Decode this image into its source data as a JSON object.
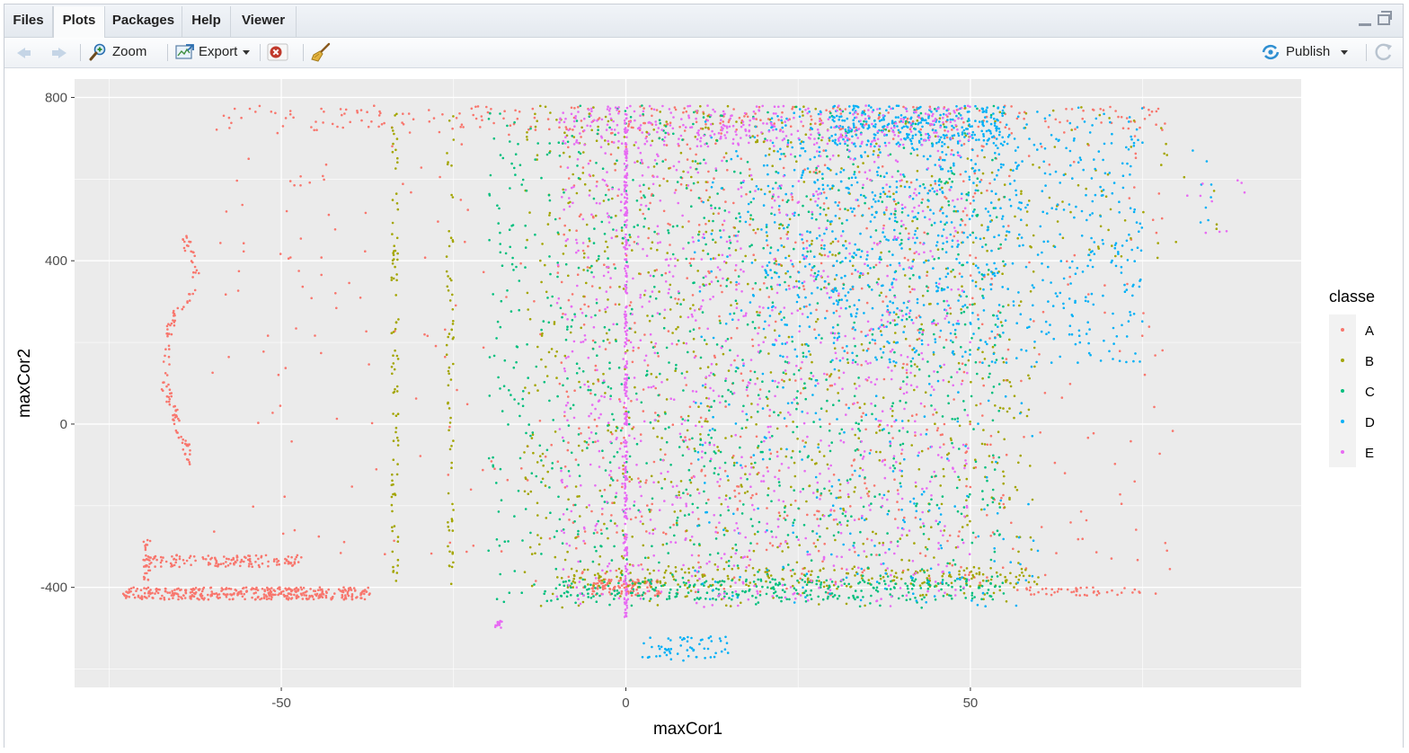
{
  "tabs": [
    {
      "label": "Files",
      "active": false
    },
    {
      "label": "Plots",
      "active": true
    },
    {
      "label": "Packages",
      "active": false
    },
    {
      "label": "Help",
      "active": false
    },
    {
      "label": "Viewer",
      "active": false
    }
  ],
  "toolbar": {
    "zoom_label": "Zoom",
    "export_label": "Export",
    "publish_label": "Publish",
    "icons": [
      "back-arrow-icon",
      "forward-arrow-icon",
      "zoom-icon",
      "export-icon",
      "remove-plot-icon",
      "broom-icon",
      "publish-icon",
      "refresh-icon"
    ]
  },
  "colors": {
    "A": "#F8766D",
    "B": "#A3A500",
    "C": "#00BF7D",
    "D": "#00B0F6",
    "E": "#E76BF3",
    "panel": "#EBEBEB",
    "grid": "#FFFFFF"
  },
  "chart_data": {
    "type": "scatter",
    "xlabel": "maxCor1",
    "ylabel": "maxCor2",
    "legend_title": "classe",
    "legend_position": "right",
    "grid": true,
    "xlim": [
      -80,
      98
    ],
    "ylim": [
      -645,
      845
    ],
    "x_ticks": [
      -50,
      0,
      50
    ],
    "x_tick_labels": [
      "-50",
      "0",
      "50"
    ],
    "y_ticks": [
      -400,
      0,
      400,
      800
    ],
    "y_tick_labels": [
      "-400",
      "0",
      "400",
      "800"
    ],
    "series": [
      {
        "name": "A",
        "color": "#F8766D",
        "clusters": [
          {
            "type": "band",
            "x": [
              -73,
              -37
            ],
            "y": [
              -430,
              -400
            ],
            "n": 380
          },
          {
            "type": "band",
            "x": [
              -70,
              -47
            ],
            "y": [
              -350,
              -320
            ],
            "n": 140
          },
          {
            "type": "band",
            "x": [
              -70,
              -69
            ],
            "y": [
              -390,
              -280
            ],
            "n": 25
          },
          {
            "type": "curve",
            "points": [
              [
                -64,
                460
              ],
              [
                -62,
                350
              ],
              [
                -66,
                250
              ],
              [
                -67,
                100
              ],
              [
                -65,
                0
              ],
              [
                -63,
                -100
              ]
            ],
            "n": 120
          },
          {
            "type": "band",
            "x": [
              -60,
              80
            ],
            "y": [
              720,
              780
            ],
            "n": 230
          },
          {
            "type": "uniform",
            "x": [
              -60,
              80
            ],
            "y": [
              -420,
              760
            ],
            "n": 380
          },
          {
            "type": "band",
            "x": [
              -5,
              5
            ],
            "y": [
              -420,
              -380
            ],
            "n": 110
          },
          {
            "type": "band",
            "x": [
              55,
              75
            ],
            "y": [
              -420,
              -400
            ],
            "n": 45
          },
          {
            "type": "uniform",
            "x": [
              -10,
              55
            ],
            "y": [
              -420,
              780
            ],
            "n": 500
          }
        ]
      },
      {
        "name": "B",
        "color": "#A3A500",
        "clusters": [
          {
            "type": "band",
            "x": [
              -34,
              -33
            ],
            "y": [
              -400,
              760
            ],
            "n": 90
          },
          {
            "type": "band",
            "x": [
              -26,
              -25
            ],
            "y": [
              -400,
              770
            ],
            "n": 70
          },
          {
            "type": "band",
            "x": [
              -10,
              60
            ],
            "y": [
              -400,
              -350
            ],
            "n": 200
          },
          {
            "type": "uniform",
            "x": [
              -15,
              60
            ],
            "y": [
              -450,
              780
            ],
            "n": 900
          },
          {
            "type": "band",
            "x": [
              60,
              88
            ],
            "y": [
              400,
              780
            ],
            "n": 50
          }
        ]
      },
      {
        "name": "C",
        "color": "#00BF7D",
        "clusters": [
          {
            "type": "uniform",
            "x": [
              -20,
              55
            ],
            "y": [
              -450,
              780
            ],
            "n": 1100
          },
          {
            "type": "band",
            "x": [
              -10,
              55
            ],
            "y": [
              -430,
              -380
            ],
            "n": 260
          }
        ]
      },
      {
        "name": "D",
        "color": "#00B0F6",
        "clusters": [
          {
            "type": "uniform",
            "x": [
              20,
              75
            ],
            "y": [
              150,
              780
            ],
            "n": 800
          },
          {
            "type": "uniform",
            "x": [
              10,
              60
            ],
            "y": [
              -450,
              780
            ],
            "n": 400
          },
          {
            "type": "band",
            "x": [
              2,
              15
            ],
            "y": [
              -580,
              -520
            ],
            "n": 60
          },
          {
            "type": "band",
            "x": [
              30,
              55
            ],
            "y": [
              680,
              780
            ],
            "n": 250
          },
          {
            "type": "band",
            "x": [
              82,
              85
            ],
            "y": [
              480,
              680
            ],
            "n": 8
          }
        ]
      },
      {
        "name": "E",
        "color": "#E76BF3",
        "clusters": [
          {
            "type": "band",
            "x": [
              -0.2,
              0.2
            ],
            "y": [
              -480,
              770
            ],
            "n": 280
          },
          {
            "type": "uniform",
            "x": [
              -10,
              50
            ],
            "y": [
              -450,
              780
            ],
            "n": 1000
          },
          {
            "type": "band",
            "x": [
              -19,
              -18
            ],
            "y": [
              -500,
              -480
            ],
            "n": 12
          },
          {
            "type": "band",
            "x": [
              -10,
              50
            ],
            "y": [
              680,
              780
            ],
            "n": 260
          },
          {
            "type": "band",
            "x": [
              80,
              90
            ],
            "y": [
              450,
              600
            ],
            "n": 10
          }
        ]
      }
    ]
  }
}
